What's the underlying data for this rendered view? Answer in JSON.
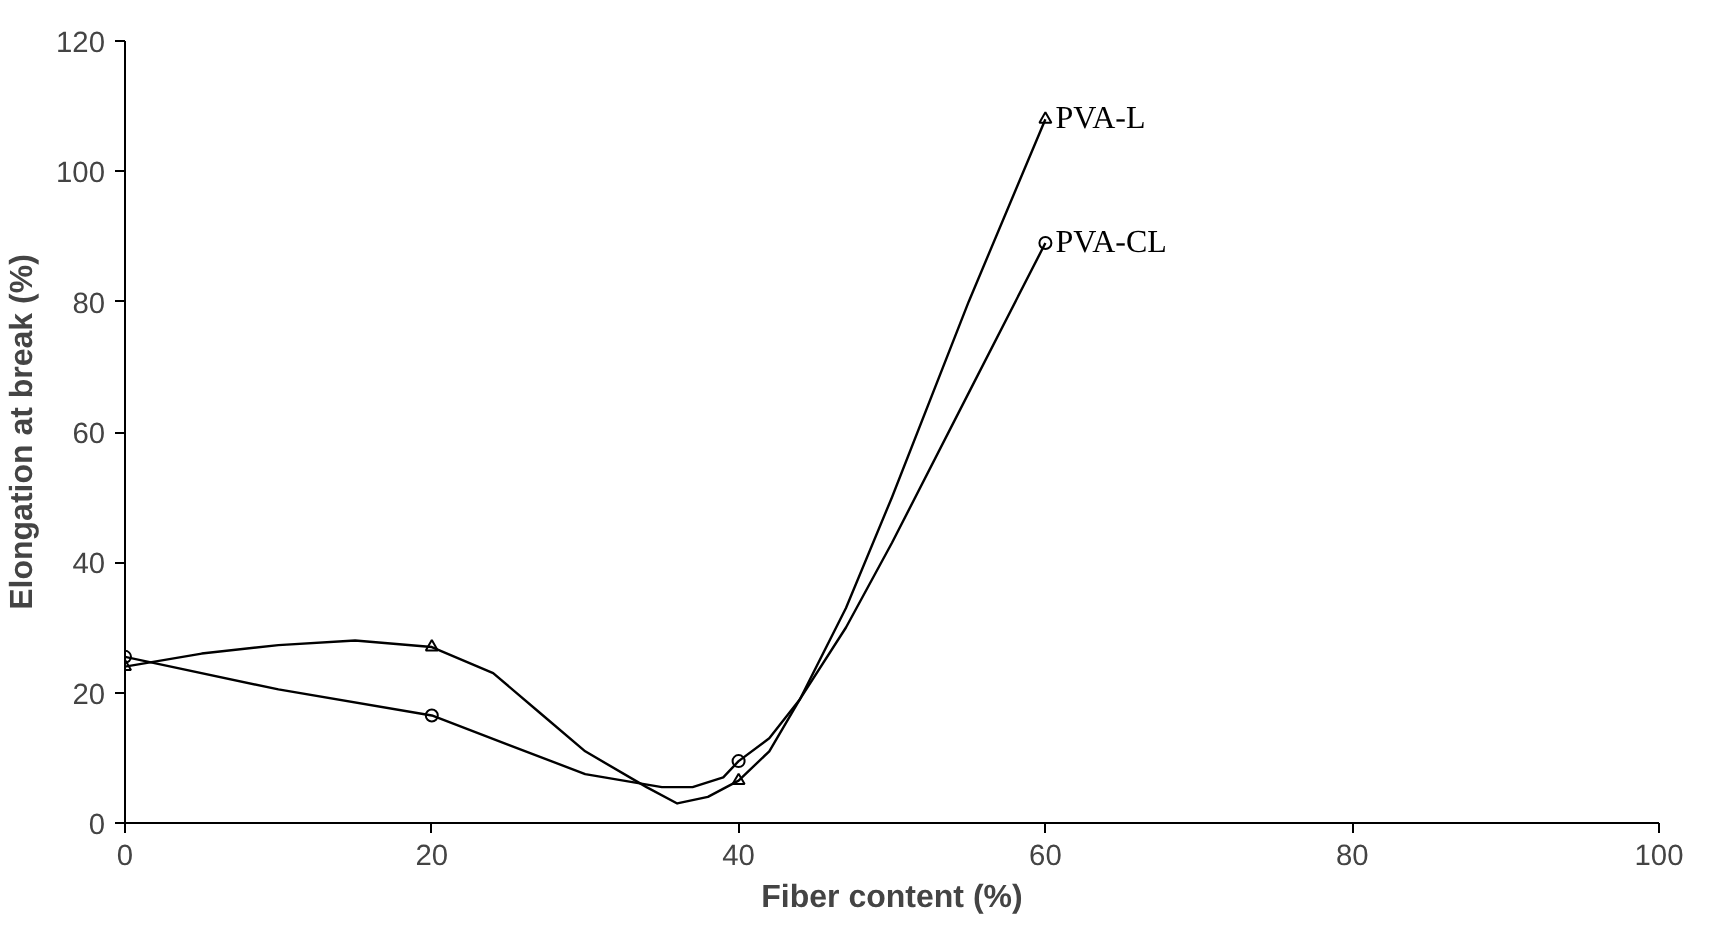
{
  "chart_data": {
    "type": "line",
    "xlabel": "Fiber content (%)",
    "ylabel": "Elongation at break (%)",
    "xlim": [
      0,
      100
    ],
    "xticks": [
      0,
      20,
      40,
      60,
      80,
      100
    ],
    "ylim": [
      0,
      120
    ],
    "yticks": [
      0,
      20,
      40,
      60,
      80,
      100,
      120
    ],
    "grid": false,
    "line_style": "solid",
    "series": [
      {
        "name": "PVA-L",
        "color": "#000000",
        "marker": "none",
        "x": [
          0,
          5,
          10,
          15,
          20,
          24,
          27,
          30,
          34,
          36,
          38,
          40,
          42,
          44,
          47,
          50,
          55,
          60
        ],
        "values": [
          24,
          26,
          27.3,
          28,
          27,
          23,
          17,
          11,
          5.5,
          3,
          4,
          6.5,
          11,
          19,
          33,
          50,
          80,
          108
        ]
      },
      {
        "name": "PVA-CL",
        "color": "#000000",
        "marker": "none",
        "x": [
          0,
          10,
          20,
          25,
          30,
          35,
          37,
          39,
          40,
          42,
          44,
          47,
          50,
          55,
          60
        ],
        "values": [
          25.5,
          20.5,
          16.5,
          12,
          7.5,
          5.5,
          5.5,
          7,
          9.5,
          13,
          19,
          30,
          43,
          66,
          89
        ]
      },
      {
        "type": "scatter",
        "color": "#000000",
        "marker": "triangle",
        "x": [
          0,
          20,
          40,
          60
        ],
        "values": [
          24,
          27,
          6.5,
          108
        ]
      },
      {
        "type": "scatter",
        "color": "#000000",
        "marker": "circle",
        "x": [
          0,
          20,
          40,
          60
        ],
        "values": [
          25.5,
          16.5,
          9.5,
          89
        ]
      }
    ]
  }
}
